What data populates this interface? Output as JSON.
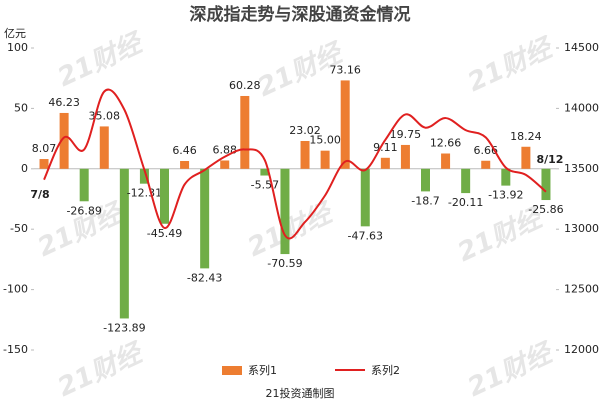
{
  "chart_data": {
    "type": "bar_line",
    "title": "深成指走势与深股通资金情况",
    "y_axis_label": "亿元",
    "footer": "21投资通制图",
    "watermark": "21财经",
    "categories": [
      "7/8",
      null,
      null,
      null,
      null,
      null,
      null,
      null,
      null,
      null,
      null,
      null,
      null,
      null,
      null,
      null,
      null,
      null,
      null,
      null,
      null,
      null,
      null,
      null,
      null,
      "8/12"
    ],
    "series": [
      {
        "name": "系列1",
        "type": "bar",
        "color": "#ed7d31",
        "negative_color": "#70ad47",
        "values": [
          8.07,
          46.23,
          -26.89,
          35.08,
          -123.89,
          -12.31,
          -45.49,
          6.46,
          -82.43,
          6.88,
          60.28,
          -5.57,
          -70.59,
          23.02,
          15.0,
          73.16,
          -47.63,
          9.11,
          19.75,
          -18.7,
          12.66,
          -20.11,
          6.66,
          -13.92,
          18.24,
          -25.86
        ],
        "value_labels": [
          "8.07",
          "46.23",
          "-26.89",
          "35.08",
          "-123.89",
          "-12.31",
          "-45.49",
          "6.46",
          "-82.43",
          "6.88",
          "60.28",
          "-5.57",
          "-70.59",
          "23.02",
          "15.00",
          "73.16",
          "-47.63",
          "9.11",
          "19.75",
          "-18.7",
          "12.66",
          "-20.11",
          "6.66",
          "-13.92",
          "18.24",
          "-25.86"
        ]
      },
      {
        "name": "系列2",
        "type": "line",
        "axis": "y2",
        "color": "#e02020",
        "values": [
          13410,
          13760,
          13660,
          14140,
          13990,
          13490,
          13010,
          13370,
          13490,
          13600,
          13660,
          13570,
          12950,
          13060,
          13280,
          13560,
          13490,
          13740,
          13950,
          13840,
          13920,
          13820,
          13760,
          13510,
          13450,
          13310
        ]
      }
    ],
    "ylim": [
      -150,
      100
    ],
    "yticks": [
      -150,
      -100,
      -50,
      0,
      50,
      100
    ],
    "y2lim": [
      12000,
      14500
    ],
    "y2ticks": [
      12000,
      12500,
      13000,
      13500,
      14000,
      14500
    ]
  }
}
